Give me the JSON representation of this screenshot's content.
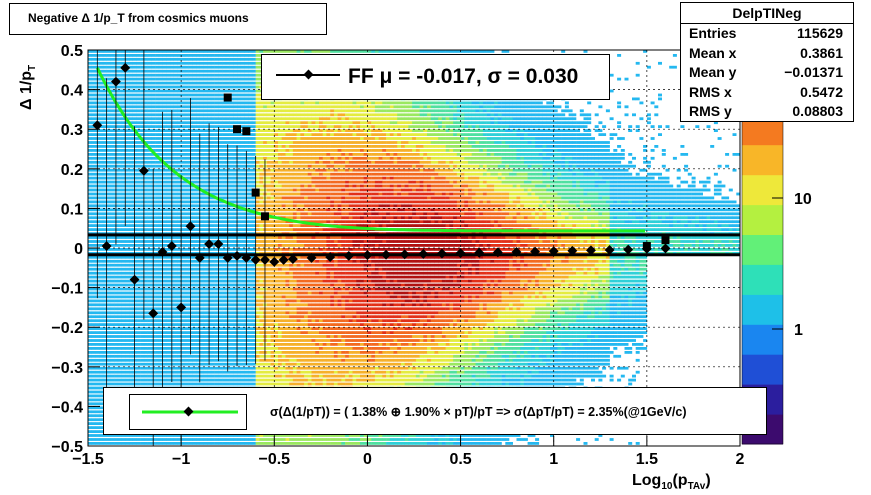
{
  "chart_data": {
    "type": "heatmap",
    "title": "Negative Δ 1/p_T from cosmics muons",
    "xlabel": "Log10(pTAv)",
    "ylabel": "Δ 1/pT",
    "xlim": [
      -1.5,
      2
    ],
    "ylim": [
      -0.5,
      0.5
    ],
    "zscale": "log",
    "x_ticks": [
      "−1.5",
      "−1",
      "−0.5",
      "0",
      "0.5",
      "1",
      "1.5",
      "2"
    ],
    "y_ticks": [
      "0.5",
      "0.4",
      "0.3",
      "0.2",
      "0.1",
      "0",
      "−0.1",
      "−0.2",
      "−0.3",
      "−0.4",
      "−0.5"
    ],
    "z_ticks": [
      "10",
      "1"
    ],
    "stats": {
      "name": "DelpTINeg",
      "entries": [
        {
          "label": "Entries",
          "value": "115629"
        },
        {
          "label": "Mean x",
          "value": "0.3861"
        },
        {
          "label": "Mean y",
          "value": "−0.01371"
        },
        {
          "label": "RMS x",
          "value": "0.5472"
        },
        {
          "label": "RMS y",
          "value": "0.08803"
        }
      ]
    },
    "fit_legend": "FF μ = -0.017, σ =   0.030",
    "sigma_legend": "σ(Δ(1/pT)) = ( 1.38% ⊕  1.90% × pT)/pT => σ(ΔpT/pT) =  2.35%(@1GeV/c)",
    "mean_points": {
      "x": [
        -1.45,
        -1.4,
        -1.35,
        -1.3,
        -1.25,
        -1.2,
        -1.15,
        -1.1,
        -1.05,
        -1.0,
        -0.95,
        -0.9,
        -0.85,
        -0.8,
        -0.75,
        -0.7,
        -0.65,
        -0.6,
        -0.55,
        -0.5,
        -0.45,
        -0.4,
        -0.3,
        -0.2,
        -0.1,
        0,
        0.1,
        0.2,
        0.3,
        0.4,
        0.5,
        0.6,
        0.7,
        0.8,
        0.9,
        1.0,
        1.1,
        1.2,
        1.3,
        1.4,
        1.5,
        1.6
      ],
      "y": [
        0.31,
        0.005,
        0.42,
        0.455,
        -0.08,
        0.195,
        -0.165,
        -0.01,
        0.005,
        -0.15,
        0.055,
        -0.025,
        0.01,
        0.01,
        -0.025,
        -0.02,
        -0.025,
        -0.03,
        -0.03,
        -0.035,
        -0.03,
        -0.028,
        -0.025,
        -0.023,
        -0.02,
        -0.018,
        -0.017,
        -0.016,
        -0.015,
        -0.014,
        -0.013,
        -0.012,
        -0.011,
        -0.01,
        -0.009,
        -0.008,
        -0.007,
        -0.006,
        -0.005,
        -0.004,
        -0.002,
        -0.001
      ]
    },
    "sigma_points": {
      "x": [
        -0.75,
        -0.7,
        -0.65,
        -0.6,
        -0.55,
        1.5,
        1.6
      ],
      "y": [
        0.38,
        0.3,
        0.295,
        0.14,
        0.08,
        0.005,
        0.02
      ]
    },
    "fit_lines": {
      "y1": 0.033,
      "y2": -0.017
    },
    "series_colors": {
      "fit": "#22ee22",
      "markers": "#000000"
    }
  }
}
